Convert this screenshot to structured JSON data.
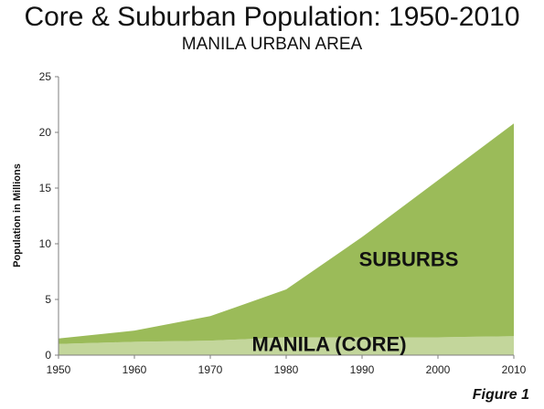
{
  "chart_data": {
    "type": "area",
    "title": "Core & Suburban Population: 1950-2010",
    "subtitle": "MANILA URBAN AREA",
    "xlabel": "",
    "ylabel": "Population in Millions",
    "x": [
      1950,
      1960,
      1970,
      1980,
      1990,
      2000,
      2010
    ],
    "ylim": [
      0,
      25
    ],
    "yticks": [
      0,
      5,
      10,
      15,
      20,
      25
    ],
    "stacked": true,
    "grid": false,
    "series": [
      {
        "name": "MANILA (CORE)",
        "values": [
          1.0,
          1.2,
          1.3,
          1.6,
          1.6,
          1.6,
          1.7
        ],
        "color": "#c3d69b"
      },
      {
        "name": "SUBURBS",
        "values": [
          0.5,
          1.0,
          2.2,
          4.3,
          9.0,
          14.1,
          19.1
        ],
        "color": "#9bbb59"
      }
    ],
    "footer": "Figure 1"
  }
}
